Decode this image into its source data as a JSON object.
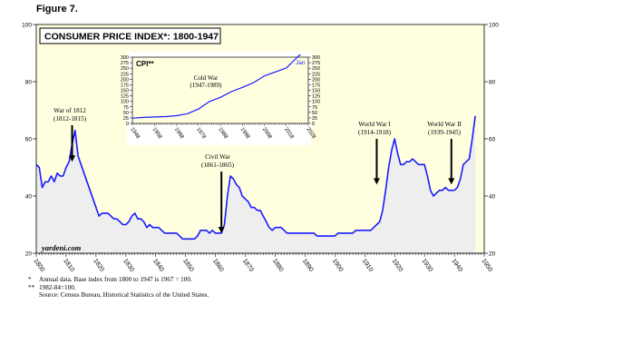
{
  "figure_label": "Figure 7.",
  "footnotes": [
    {
      "marker": "*",
      "text": "Annual data. Base index from 1800 to 1947 is 1967 = 100."
    },
    {
      "marker": "**",
      "text": "1982-84=100."
    },
    {
      "marker": "",
      "text": "Source: Census Bureau, Historical Statistics of the United States."
    }
  ],
  "colors": {
    "plot_bg": "#ffffe0",
    "line": "#1a1aff",
    "fill": "#eeeeee",
    "arrow": "#000000"
  },
  "chart_data": [
    {
      "type": "area",
      "title": "CONSUMER PRICE INDEX*: 1800-1947",
      "watermark": "yardeni.com",
      "xlim": [
        1800,
        1950
      ],
      "ylim": [
        20,
        100
      ],
      "x_ticks": [
        1800,
        1810,
        1820,
        1830,
        1840,
        1850,
        1860,
        1870,
        1880,
        1890,
        1900,
        1910,
        1920,
        1930,
        1940,
        1950
      ],
      "y_ticks": [
        20,
        40,
        60,
        80,
        100
      ],
      "grid": false,
      "x": [
        1800,
        1801,
        1802,
        1803,
        1804,
        1805,
        1806,
        1807,
        1808,
        1809,
        1810,
        1811,
        1812,
        1813,
        1814,
        1815,
        1816,
        1817,
        1818,
        1819,
        1820,
        1821,
        1822,
        1823,
        1824,
        1825,
        1826,
        1827,
        1828,
        1829,
        1830,
        1831,
        1832,
        1833,
        1834,
        1835,
        1836,
        1837,
        1838,
        1839,
        1840,
        1841,
        1842,
        1843,
        1844,
        1845,
        1846,
        1847,
        1848,
        1849,
        1850,
        1851,
        1852,
        1853,
        1854,
        1855,
        1856,
        1857,
        1858,
        1859,
        1860,
        1861,
        1862,
        1863,
        1864,
        1865,
        1866,
        1867,
        1868,
        1869,
        1870,
        1871,
        1872,
        1873,
        1874,
        1875,
        1876,
        1877,
        1878,
        1879,
        1880,
        1881,
        1882,
        1883,
        1884,
        1885,
        1886,
        1887,
        1888,
        1889,
        1890,
        1891,
        1892,
        1893,
        1894,
        1895,
        1896,
        1897,
        1898,
        1899,
        1900,
        1901,
        1902,
        1903,
        1904,
        1905,
        1906,
        1907,
        1908,
        1909,
        1910,
        1911,
        1912,
        1913,
        1914,
        1915,
        1916,
        1917,
        1918,
        1919,
        1920,
        1921,
        1922,
        1923,
        1924,
        1925,
        1926,
        1927,
        1928,
        1929,
        1930,
        1931,
        1932,
        1933,
        1934,
        1935,
        1936,
        1937,
        1938,
        1939,
        1940,
        1941,
        1942,
        1943,
        1944,
        1945,
        1946,
        1947
      ],
      "series": [
        {
          "values": [
            51,
            50,
            43,
            45,
            45,
            47,
            45,
            48,
            47,
            47,
            50,
            52,
            58,
            63,
            54,
            51,
            48,
            45,
            42,
            39,
            36,
            33,
            34,
            34,
            34,
            33,
            32,
            32,
            31,
            30,
            30,
            31,
            33,
            34,
            32,
            32,
            31,
            29,
            30,
            29,
            29,
            29,
            28,
            27,
            27,
            27,
            27,
            27,
            26,
            25,
            25,
            25,
            25,
            25,
            26,
            28,
            28,
            28,
            27,
            28,
            27,
            27,
            27,
            30,
            40,
            47,
            46,
            44,
            43,
            40,
            39,
            38,
            36,
            36,
            35,
            35,
            33,
            31,
            29,
            28,
            29,
            29,
            29,
            28,
            27,
            27,
            27,
            27,
            27,
            27,
            27,
            27,
            27,
            27,
            26,
            26,
            26,
            26,
            26,
            26,
            26,
            27,
            27,
            27,
            27,
            27,
            27,
            28,
            28,
            28,
            28,
            28,
            28,
            29,
            30,
            31,
            35,
            42,
            50,
            56,
            60,
            55,
            51,
            51,
            52,
            52,
            53,
            52,
            51,
            51,
            51,
            47,
            42,
            40,
            41,
            42,
            42,
            43,
            42,
            42,
            42,
            43,
            46,
            51,
            52,
            53,
            60,
            68
          ]
        }
      ],
      "annotations": [
        {
          "label": "War of 1812",
          "sublabel": "(1812-1815)",
          "x": 1812,
          "y": 52
        },
        {
          "label": "Civil War",
          "sublabel": "(1861-1865)",
          "x": 1862,
          "y": 27
        },
        {
          "label": "World War I",
          "sublabel": "(1914-1918)",
          "x": 1914,
          "y": 44
        },
        {
          "label": "World War II",
          "sublabel": "(1939-1945)",
          "x": 1939,
          "y": 44
        }
      ]
    },
    {
      "type": "line",
      "title": "CPI**",
      "legend_label": "Jan",
      "xlim": [
        1948,
        2028
      ],
      "ylim": [
        0,
        300
      ],
      "x_ticks": [
        1948,
        1958,
        1968,
        1978,
        1988,
        1998,
        2008,
        2018,
        2028
      ],
      "y_ticks": [
        0,
        25,
        50,
        75,
        100,
        125,
        150,
        175,
        200,
        225,
        250,
        275,
        300
      ],
      "x": [
        1948,
        1953,
        1958,
        1963,
        1968,
        1973,
        1978,
        1983,
        1988,
        1993,
        1998,
        2003,
        2008,
        2013,
        2018,
        2023,
        2025
      ],
      "series": [
        {
          "values": [
            24,
            27,
            29,
            31,
            35,
            44,
            65,
            99,
            118,
            144,
            163,
            184,
            215,
            233,
            251,
            300,
            318
          ]
        }
      ],
      "annotations": [
        {
          "label": "Cold War",
          "sublabel": "(1947-1989)"
        }
      ]
    }
  ]
}
